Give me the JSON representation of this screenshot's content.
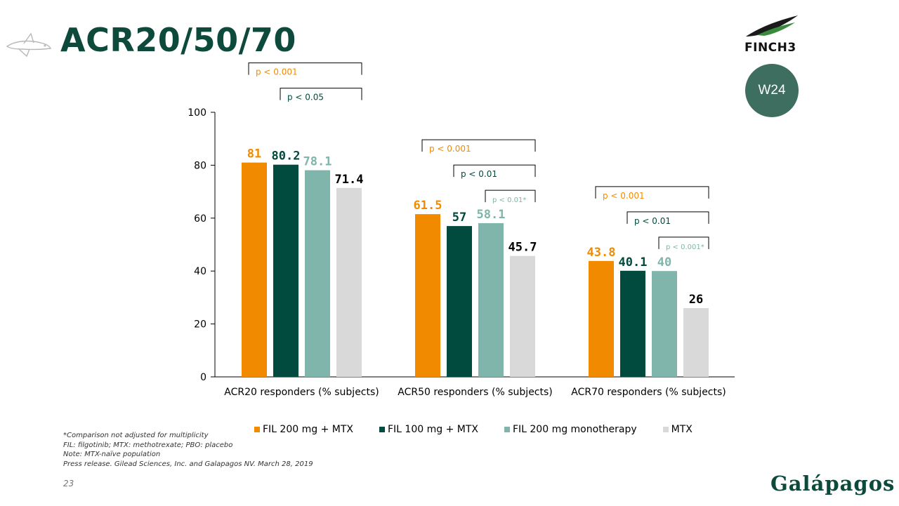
{
  "title": "ACR20/50/70",
  "finch_label": "FINCH3",
  "week_badge": "W24",
  "brand": "Galápagos",
  "page_number": "23",
  "notes": [
    "*Comparison not adjusted for multiplicity",
    "FIL: filgotinib; MTX: methotrexate; PBO: placebo",
    "Note: MTX-naïve population",
    "Press release. Gilead Sciences, Inc. and Galapagos NV. March 28, 2019"
  ],
  "colors": {
    "title": "#0d4a3c",
    "fil200mtx": "#f28a00",
    "fil100mtx": "#004a3e",
    "fil200mono": "#7fb5aa",
    "mtx": "#d9d9d9"
  },
  "chart_data": {
    "type": "bar",
    "categories": [
      "ACR20 responders (% subjects)",
      "ACR50 responders (% subjects)",
      "ACR70 responders (% subjects)"
    ],
    "series": [
      {
        "name": "FIL 200 mg + MTX",
        "color": "#f28a00",
        "label_color": "#f28a00",
        "values": [
          81,
          61.5,
          43.8
        ],
        "labels": [
          "81",
          "61.5",
          "43.8"
        ]
      },
      {
        "name": "FIL 100 mg + MTX",
        "color": "#004a3e",
        "label_color": "#004a3e",
        "values": [
          80.2,
          57,
          40.1
        ],
        "labels": [
          "80.2",
          "57",
          "40.1"
        ]
      },
      {
        "name": "FIL 200 mg monotherapy",
        "color": "#7fb5aa",
        "label_color": "#7fb5aa",
        "values": [
          78.1,
          58.1,
          40
        ],
        "labels": [
          "78.1",
          "58.1",
          "40"
        ]
      },
      {
        "name": "MTX",
        "color": "#d9d9d9",
        "label_color": "#000000",
        "values": [
          71.4,
          45.7,
          26
        ],
        "labels": [
          "71.4",
          "45.7",
          "26"
        ]
      }
    ],
    "ylim": [
      0,
      100
    ],
    "yticks": [
      0,
      20,
      40,
      60,
      80,
      100
    ],
    "legend_position": "bottom",
    "grid": false,
    "annotations": [
      {
        "category": 0,
        "from_series": 0,
        "level": 3,
        "text": "p < 0.001",
        "color": "#f28a00"
      },
      {
        "category": 0,
        "from_series": 1,
        "level": 2,
        "text": "p < 0.05",
        "color": "#004a3e"
      },
      {
        "category": 1,
        "from_series": 0,
        "level": 2,
        "text": "p < 0.001",
        "color": "#f28a00"
      },
      {
        "category": 1,
        "from_series": 1,
        "level": 1,
        "text": "p < 0.01",
        "color": "#004a3e"
      },
      {
        "category": 1,
        "from_series": 2,
        "level": 0,
        "text": "p < 0.01*",
        "color": "#7fb5aa"
      },
      {
        "category": 2,
        "from_series": 0,
        "level": 2,
        "text": "p < 0.001",
        "color": "#f28a00"
      },
      {
        "category": 2,
        "from_series": 1,
        "level": 1,
        "text": "p < 0.01",
        "color": "#004a3e"
      },
      {
        "category": 2,
        "from_series": 2,
        "level": 0,
        "text": "p < 0.001*",
        "color": "#7fb5aa"
      }
    ]
  }
}
